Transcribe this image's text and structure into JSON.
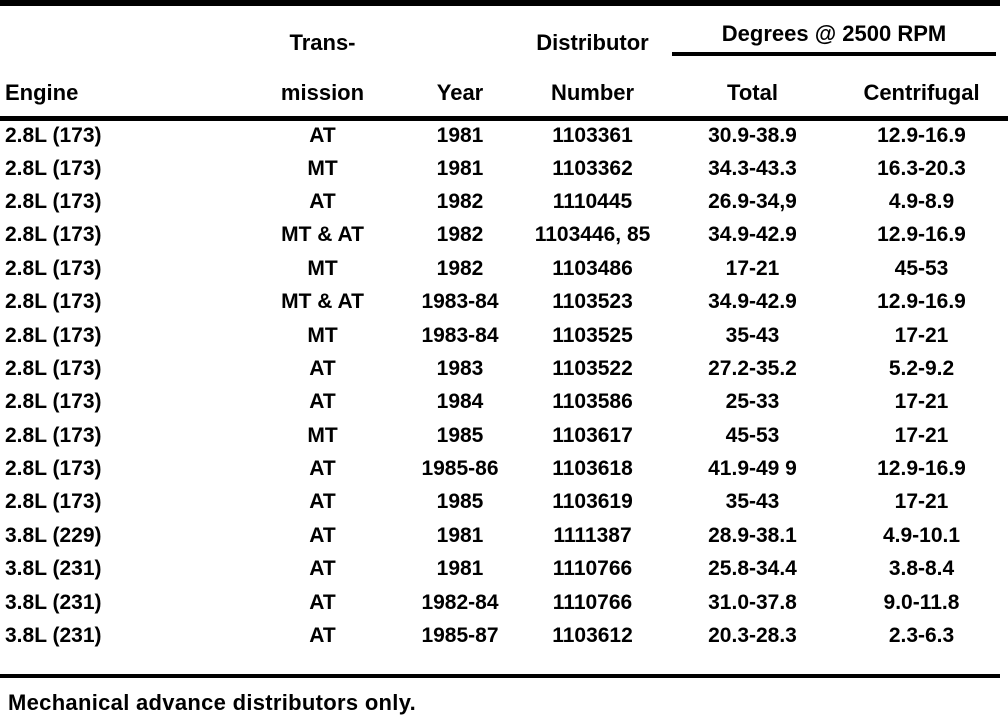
{
  "table": {
    "headers": {
      "engine": "Engine",
      "transmission_line1": "Trans-",
      "transmission_line2": "mission",
      "year": "Year",
      "distributor_line1": "Distributor",
      "distributor_line2": "Number",
      "degrees_group": "Degrees @ 2500 RPM",
      "total": "Total",
      "centrifugal": "Centrifugal"
    },
    "rows": [
      [
        "2.8L (173)",
        "AT",
        "1981",
        "1103361",
        "30.9-38.9",
        "12.9-16.9"
      ],
      [
        "2.8L (173)",
        "MT",
        "1981",
        "1103362",
        "34.3-43.3",
        "16.3-20.3"
      ],
      [
        "2.8L (173)",
        "AT",
        "1982",
        "1110445",
        "26.9-34,9",
        "4.9-8.9"
      ],
      [
        "2.8L (173)",
        "MT & AT",
        "1982",
        "1103446, 85",
        "34.9-42.9",
        "12.9-16.9"
      ],
      [
        "2.8L (173)",
        "MT",
        "1982",
        "1103486",
        "17-21",
        "45-53"
      ],
      [
        "2.8L (173)",
        "MT & AT",
        "1983-84",
        "1103523",
        "34.9-42.9",
        "12.9-16.9"
      ],
      [
        "2.8L (173)",
        "MT",
        "1983-84",
        "1103525",
        "35-43",
        "17-21"
      ],
      [
        "2.8L (173)",
        "AT",
        "1983",
        "1103522",
        "27.2-35.2",
        "5.2-9.2"
      ],
      [
        "2.8L (173)",
        "AT",
        "1984",
        "1103586",
        "25-33",
        "17-21"
      ],
      [
        "2.8L (173)",
        "MT",
        "1985",
        "1103617",
        "45-53",
        "17-21"
      ],
      [
        "2.8L (173)",
        "AT",
        "1985-86",
        "1103618",
        "41.9-49 9",
        "12.9-16.9"
      ],
      [
        "2.8L (173)",
        "AT",
        "1985",
        "1103619",
        "35-43",
        "17-21"
      ],
      [
        "3.8L (229)",
        "AT",
        "1981",
        "1111387",
        "28.9-38.1",
        "4.9-10.1"
      ],
      [
        "3.8L (231)",
        "AT",
        "1981",
        "1110766",
        "25.8-34.4",
        "3.8-8.4"
      ],
      [
        "3.8L (231)",
        "AT",
        "1982-84",
        "1110766",
        "31.0-37.8",
        "9.0-11.8"
      ],
      [
        "3.8L (231)",
        "AT",
        "1985-87",
        "1103612",
        "20.3-28.3",
        "2.3-6.3"
      ]
    ]
  },
  "footnote": "Mechanical advance distributors only.",
  "colors": {
    "ink": "#000000",
    "paper": "#ffffff"
  }
}
